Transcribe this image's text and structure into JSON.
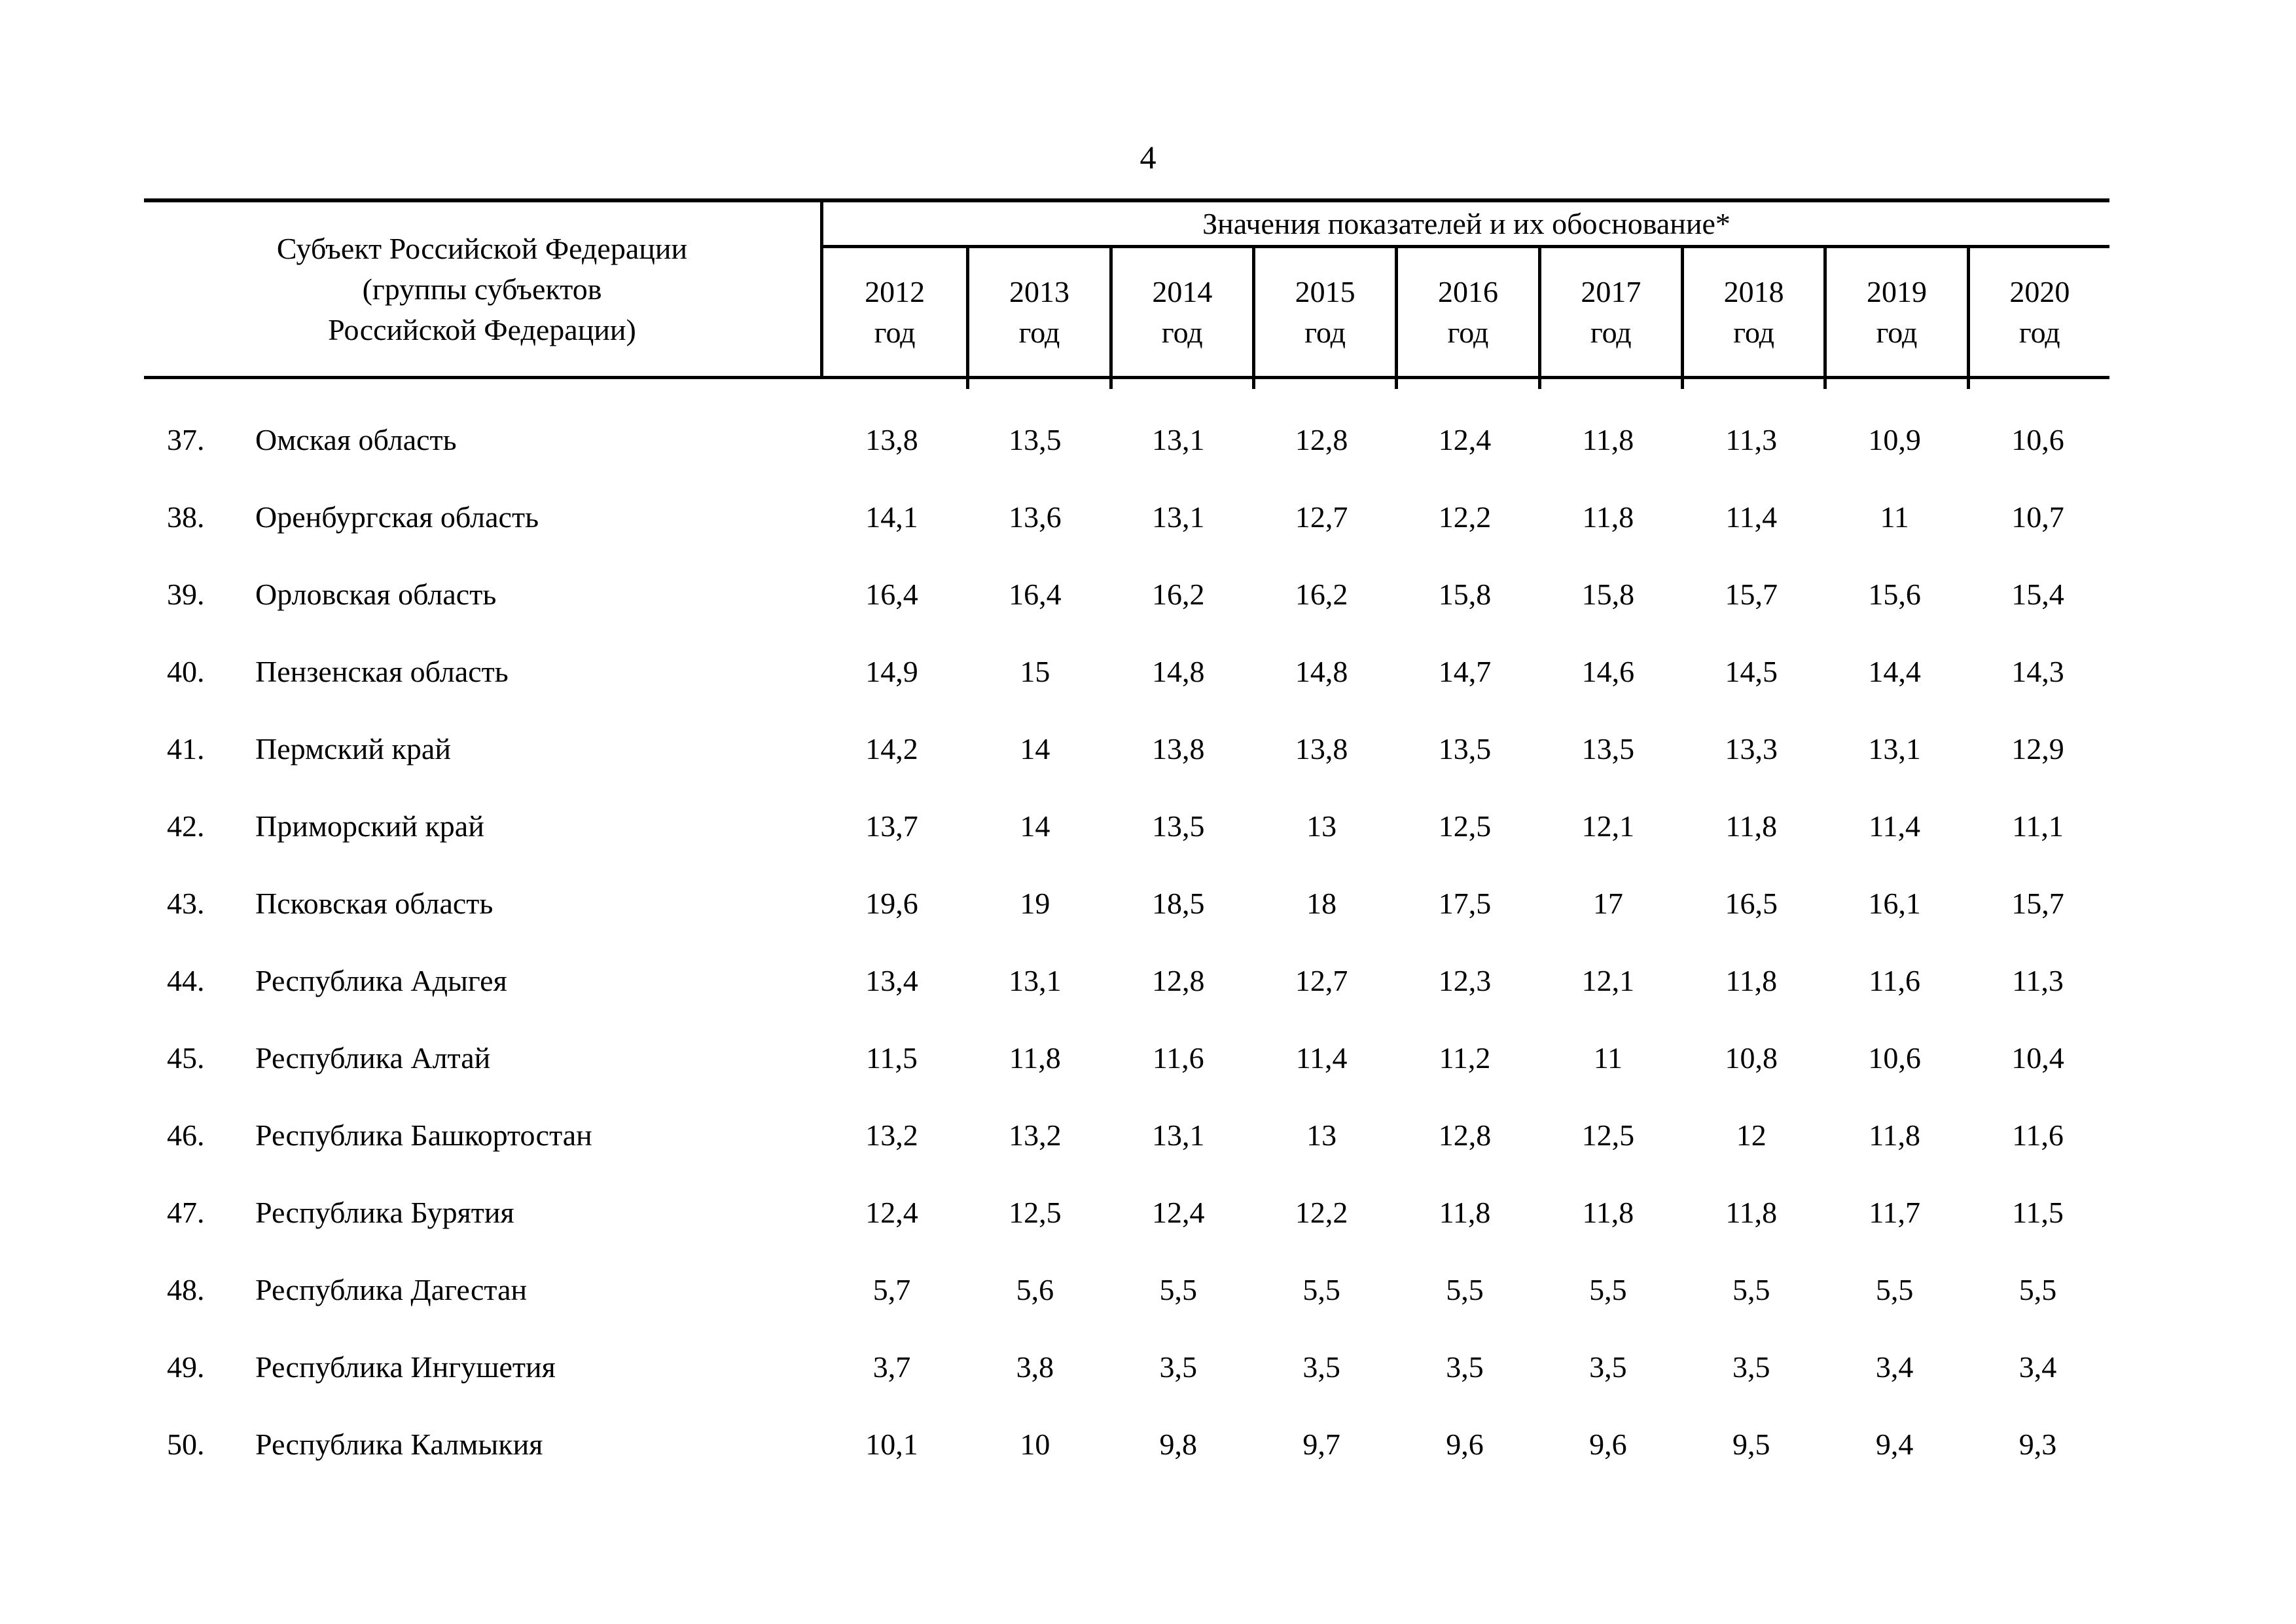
{
  "page_number": "4",
  "table": {
    "header": {
      "subject_lines": [
        "Субъект Российской Федерации",
        "(группы субъектов",
        "Российской Федерации)"
      ],
      "values_title": "Значения показателей и их обоснование*",
      "years": [
        "2012",
        "2013",
        "2014",
        "2015",
        "2016",
        "2017",
        "2018",
        "2019",
        "2020"
      ],
      "year_unit": "год"
    },
    "rows": [
      {
        "num": "37.",
        "name": "Омская область",
        "values": [
          "13,8",
          "13,5",
          "13,1",
          "12,8",
          "12,4",
          "11,8",
          "11,3",
          "10,9",
          "10,6"
        ]
      },
      {
        "num": "38.",
        "name": "Оренбургская область",
        "values": [
          "14,1",
          "13,6",
          "13,1",
          "12,7",
          "12,2",
          "11,8",
          "11,4",
          "11",
          "10,7"
        ]
      },
      {
        "num": "39.",
        "name": "Орловская область",
        "values": [
          "16,4",
          "16,4",
          "16,2",
          "16,2",
          "15,8",
          "15,8",
          "15,7",
          "15,6",
          "15,4"
        ]
      },
      {
        "num": "40.",
        "name": "Пензенская область",
        "values": [
          "14,9",
          "15",
          "14,8",
          "14,8",
          "14,7",
          "14,6",
          "14,5",
          "14,4",
          "14,3"
        ]
      },
      {
        "num": "41.",
        "name": "Пермский край",
        "values": [
          "14,2",
          "14",
          "13,8",
          "13,8",
          "13,5",
          "13,5",
          "13,3",
          "13,1",
          "12,9"
        ]
      },
      {
        "num": "42.",
        "name": "Приморский край",
        "values": [
          "13,7",
          "14",
          "13,5",
          "13",
          "12,5",
          "12,1",
          "11,8",
          "11,4",
          "11,1"
        ]
      },
      {
        "num": "43.",
        "name": "Псковская область",
        "values": [
          "19,6",
          "19",
          "18,5",
          "18",
          "17,5",
          "17",
          "16,5",
          "16,1",
          "15,7"
        ]
      },
      {
        "num": "44.",
        "name": "Республика Адыгея",
        "values": [
          "13,4",
          "13,1",
          "12,8",
          "12,7",
          "12,3",
          "12,1",
          "11,8",
          "11,6",
          "11,3"
        ]
      },
      {
        "num": "45.",
        "name": "Республика Алтай",
        "values": [
          "11,5",
          "11,8",
          "11,6",
          "11,4",
          "11,2",
          "11",
          "10,8",
          "10,6",
          "10,4"
        ]
      },
      {
        "num": "46.",
        "name": "Республика Башкортостан",
        "values": [
          "13,2",
          "13,2",
          "13,1",
          "13",
          "12,8",
          "12,5",
          "12",
          "11,8",
          "11,6"
        ]
      },
      {
        "num": "47.",
        "name": "Республика Бурятия",
        "values": [
          "12,4",
          "12,5",
          "12,4",
          "12,2",
          "11,8",
          "11,8",
          "11,8",
          "11,7",
          "11,5"
        ]
      },
      {
        "num": "48.",
        "name": "Республика Дагестан",
        "values": [
          "5,7",
          "5,6",
          "5,5",
          "5,5",
          "5,5",
          "5,5",
          "5,5",
          "5,5",
          "5,5"
        ]
      },
      {
        "num": "49.",
        "name": "Республика Ингушетия",
        "values": [
          "3,7",
          "3,8",
          "3,5",
          "3,5",
          "3,5",
          "3,5",
          "3,5",
          "3,4",
          "3,4"
        ]
      },
      {
        "num": "50.",
        "name": "Республика Калмыкия",
        "values": [
          "10,1",
          "10",
          "9,8",
          "9,7",
          "9,6",
          "9,6",
          "9,5",
          "9,4",
          "9,3"
        ]
      }
    ]
  }
}
